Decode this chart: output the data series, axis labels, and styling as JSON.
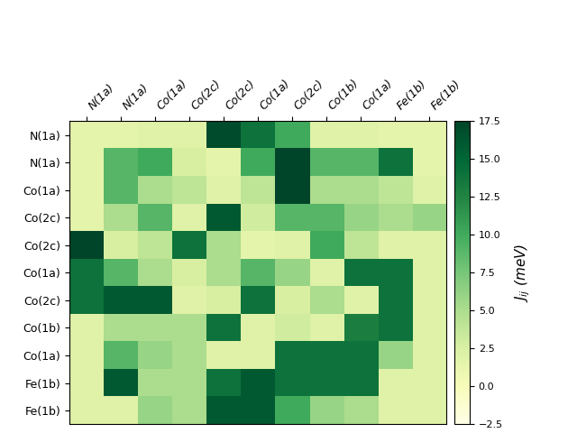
{
  "labels": [
    "N(1a)",
    "N(1a)",
    "Co(1a)",
    "Co(2c)",
    "Co(2c)",
    "Co(1a)",
    "Co(2c)",
    "Co(1b)",
    "Co(1a)",
    "Fe(1b)",
    "Fe(1b)"
  ],
  "col_labels": [
    "N(1a)",
    "N(1a)",
    "Co(1a)",
    "Co(2c)",
    "Co(2c)",
    "Co(1a)",
    "Co(2c)",
    "Co(1b)",
    "Co(1a)",
    "Fe(1b)",
    "Fe(1b)"
  ],
  "matrix": [
    [
      1.5,
      1.5,
      2.0,
      2.0,
      17.0,
      14.0,
      10.0,
      2.0,
      2.0,
      1.5,
      1.5
    ],
    [
      1.5,
      9.0,
      10.0,
      2.5,
      1.5,
      10.0,
      17.5,
      9.0,
      9.0,
      14.0,
      1.5
    ],
    [
      1.5,
      9.0,
      5.0,
      4.0,
      2.0,
      4.0,
      17.5,
      5.0,
      5.0,
      4.0,
      2.0
    ],
    [
      1.5,
      5.0,
      9.0,
      2.0,
      16.0,
      3.0,
      9.0,
      9.0,
      6.0,
      5.0,
      6.0
    ],
    [
      17.5,
      2.5,
      4.0,
      14.0,
      5.0,
      1.5,
      2.0,
      10.0,
      4.0,
      2.0,
      2.0
    ],
    [
      14.0,
      9.0,
      5.0,
      2.5,
      5.0,
      9.0,
      6.0,
      2.0,
      14.0,
      14.0,
      2.0
    ],
    [
      14.0,
      16.0,
      16.0,
      2.0,
      2.5,
      14.0,
      2.5,
      5.0,
      2.0,
      14.0,
      2.0
    ],
    [
      2.0,
      5.0,
      5.0,
      5.0,
      14.0,
      2.0,
      3.0,
      2.0,
      13.0,
      14.0,
      2.0
    ],
    [
      2.0,
      9.0,
      6.0,
      5.0,
      2.0,
      2.0,
      14.0,
      14.0,
      14.0,
      6.0,
      2.0
    ],
    [
      2.0,
      16.0,
      5.0,
      5.0,
      14.0,
      16.0,
      14.0,
      14.0,
      14.0,
      2.0,
      2.0
    ],
    [
      2.0,
      2.0,
      6.0,
      5.0,
      16.0,
      16.0,
      10.0,
      6.0,
      5.0,
      2.0,
      2.0
    ]
  ],
  "vmin": -2.5,
  "vmax": 17.5,
  "cmap": "YlGn",
  "colorbar_label": "$J_{ij}$ (meV)",
  "figsize": [
    6.4,
    4.8
  ],
  "dpi": 100,
  "row_label_fontsize": 9,
  "col_label_fontsize": 9,
  "cbar_tick_fontsize": 8,
  "cbar_label_fontsize": 11
}
